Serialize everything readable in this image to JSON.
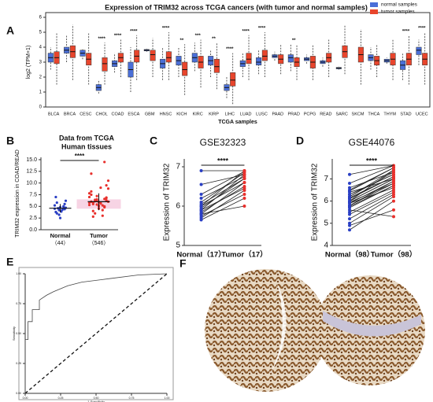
{
  "chart_data": [
    {
      "type": "box",
      "panel_label": "A",
      "title": "Expression of TRIM32 across TCGA cancers (with tumor and normal samples)",
      "ylabel": "log2 (TPM+1)",
      "xlabel": "TCGA samples",
      "ylim": [
        0,
        6
      ],
      "yticks": [
        0,
        1,
        2,
        3,
        4,
        5,
        6
      ],
      "legend": "upper right",
      "categories": [
        "BLCA",
        "BRCA",
        "CESC",
        "CHOL",
        "COAD",
        "ESCA",
        "GBM",
        "HNSC",
        "KICH",
        "KIRC",
        "KIRP",
        "LIHC",
        "LUAD",
        "LUSC",
        "PAAD",
        "PRAD",
        "PCPG",
        "READ",
        "SARC",
        "SKCM",
        "THCA",
        "THYM",
        "STAD",
        "UCEC"
      ],
      "significance": [
        null,
        null,
        null,
        "****",
        "****",
        "****",
        null,
        "****",
        "**",
        "***",
        "**",
        "****",
        "****",
        "****",
        null,
        "**",
        null,
        null,
        null,
        null,
        null,
        null,
        "****",
        "****"
      ],
      "series": [
        {
          "name": "normal samples",
          "color": "#4a6fd8",
          "median": [
            3.3,
            3.8,
            3.6,
            1.3,
            2.9,
            2.5,
            3.8,
            2.9,
            3.1,
            3.3,
            3.1,
            1.3,
            2.9,
            3.0,
            3.4,
            3.3,
            3.2,
            3.0,
            2.6,
            null,
            3.3,
            3.1,
            2.8,
            3.8
          ],
          "q1": [
            3.0,
            3.6,
            3.4,
            1.1,
            2.7,
            2.0,
            3.75,
            2.6,
            2.8,
            3.0,
            2.8,
            1.1,
            2.7,
            2.8,
            3.3,
            3.0,
            3.1,
            2.9,
            2.55,
            null,
            3.1,
            3.0,
            2.5,
            3.5
          ],
          "q3": [
            3.6,
            4.0,
            3.8,
            1.5,
            3.1,
            3.0,
            3.85,
            3.2,
            3.4,
            3.6,
            3.4,
            1.5,
            3.1,
            3.3,
            3.5,
            3.5,
            3.3,
            3.1,
            2.65,
            null,
            3.5,
            3.2,
            3.1,
            4.0
          ],
          "low": [
            2.5,
            3.0,
            3.2,
            0.9,
            2.3,
            1.0,
            3.7,
            1.8,
            2.0,
            2.4,
            2.0,
            0.6,
            2.0,
            2.2,
            3.1,
            2.4,
            2.9,
            2.7,
            2.5,
            null,
            2.5,
            2.9,
            1.8,
            2.8
          ],
          "high": [
            4.0,
            4.8,
            3.9,
            1.8,
            3.6,
            4.0,
            3.9,
            4.0,
            4.0,
            4.3,
            3.8,
            2.0,
            3.6,
            3.8,
            3.7,
            4.2,
            3.5,
            3.3,
            2.7,
            null,
            4.0,
            3.3,
            3.6,
            4.5
          ]
        },
        {
          "name": "tumor samples",
          "color": "#e8452c",
          "median": [
            3.3,
            3.7,
            3.2,
            2.9,
            3.3,
            3.4,
            3.5,
            3.3,
            2.5,
            3.0,
            2.7,
            1.8,
            3.2,
            3.4,
            3.2,
            3.0,
            3.0,
            3.3,
            3.7,
            3.5,
            3.1,
            3.2,
            3.2,
            3.2
          ],
          "q1": [
            2.9,
            3.3,
            2.8,
            2.4,
            3.0,
            3.0,
            3.1,
            3.0,
            2.1,
            2.6,
            2.3,
            1.4,
            2.9,
            3.1,
            2.9,
            2.7,
            2.6,
            3.0,
            3.3,
            3.0,
            2.8,
            2.8,
            2.8,
            2.8
          ],
          "q3": [
            3.7,
            4.1,
            3.6,
            3.3,
            3.6,
            3.8,
            3.8,
            3.7,
            3.0,
            3.4,
            3.2,
            2.3,
            3.6,
            3.8,
            3.5,
            3.3,
            3.4,
            3.6,
            4.1,
            4.0,
            3.4,
            3.6,
            3.6,
            3.6
          ],
          "low": [
            1.5,
            1.8,
            1.5,
            1.5,
            2.0,
            1.8,
            2.0,
            1.8,
            0.8,
            1.3,
            1.2,
            0.2,
            1.8,
            2.0,
            2.2,
            1.8,
            1.8,
            2.0,
            2.2,
            1.5,
            2.0,
            1.8,
            1.5,
            1.5
          ],
          "high": [
            5.0,
            5.5,
            5.0,
            4.3,
            4.5,
            4.8,
            4.6,
            5.0,
            4.2,
            4.5,
            4.3,
            3.6,
            4.8,
            5.0,
            4.2,
            4.2,
            4.2,
            4.5,
            5.5,
            5.2,
            4.2,
            4.5,
            4.8,
            5.0
          ]
        }
      ]
    },
    {
      "type": "dot",
      "panel_label": "B",
      "title": "Data from TCGA",
      "subtitle": "Human tissues",
      "ylabel": "TRIM32 expression in COAD/READ",
      "ylim": [
        0,
        15.5
      ],
      "yticks": [
        {
          "value": 0,
          "label": "0.0"
        },
        {
          "value": 2.5,
          "label": "2.5"
        },
        {
          "value": 5,
          "label": "5.0"
        },
        {
          "value": 7.5,
          "label": "7.5"
        },
        {
          "value": 10,
          "label": "10.0"
        },
        {
          "value": 12.5,
          "label": "12.5"
        },
        {
          "value": 15,
          "label": "15.0"
        }
      ],
      "categories": [
        "Normal",
        "Tumor"
      ],
      "counts": [
        "（44）",
        "（546）"
      ],
      "significance": "****",
      "groups": [
        {
          "color": "#2a3fc4",
          "values": [
            4.5,
            4.2,
            5.0,
            3.8,
            4.8,
            5.5,
            3.5,
            4.0,
            6.2,
            4.6,
            4.3,
            5.2,
            3.2,
            4.9,
            7.0,
            2.5,
            4.4,
            5.8,
            3.9,
            4.7
          ],
          "mean": 4.6,
          "sd": 0.9
        },
        {
          "color": "#e8302c",
          "values": [
            5.8,
            6.2,
            5.0,
            7.5,
            4.5,
            6.8,
            5.5,
            9.0,
            6.0,
            3.5,
            5.2,
            7.0,
            6.5,
            4.8,
            8.2,
            5.9,
            6.3,
            2.8,
            5.6,
            10.5,
            6.1,
            4.2,
            7.8,
            5.4,
            6.6,
            12.0,
            5.1,
            6.9,
            4.0,
            5.7,
            8.8,
            6.4,
            3.0,
            5.3,
            7.2,
            14.5,
            6.0,
            4.6,
            9.5,
            5.8
          ],
          "mean": 6.0,
          "sd": 1.8
        }
      ]
    },
    {
      "type": "paired",
      "panel_label": "C",
      "title": "GSE32323",
      "ylabel": "Expression of TRIM32",
      "ylim": [
        5,
        7.2
      ],
      "yticks": [
        5,
        6,
        7
      ],
      "categories": [
        "Normal（17）",
        "Tumor（17）"
      ],
      "colors": [
        "#2a3fc4",
        "#e8302c"
      ],
      "significance": "****",
      "before": [
        5.7,
        5.8,
        5.9,
        6.0,
        5.65,
        6.1,
        5.85,
        5.95,
        6.9,
        6.2,
        5.75,
        6.0,
        6.3,
        5.9,
        6.05,
        5.8,
        6.55
      ],
      "after": [
        6.4,
        6.6,
        6.8,
        6.9,
        6.2,
        6.85,
        6.5,
        6.7,
        6.9,
        6.75,
        6.3,
        6.6,
        6.88,
        6.45,
        6.7,
        6.0,
        6.8
      ]
    },
    {
      "type": "paired",
      "panel_label": "D",
      "title": "GSE44076",
      "ylabel": "Expression of TRIM32",
      "ylim": [
        4,
        7.9
      ],
      "yticks": [
        4,
        5,
        6,
        7
      ],
      "categories": [
        "Normal（98）",
        "Tumor（98）"
      ],
      "colors": [
        "#2a3fc4",
        "#e8302c"
      ],
      "significance": "****",
      "before": [
        6.0,
        5.8,
        6.2,
        5.5,
        6.5,
        7.2,
        5.9,
        6.1,
        4.7,
        5.7,
        6.3,
        6.0,
        5.2,
        6.4,
        5.6,
        6.6,
        5.9,
        6.1,
        5.0,
        6.2,
        5.8,
        6.0,
        6.8,
        5.4,
        6.3,
        5.95,
        6.15,
        4.9,
        5.75,
        6.45
      ],
      "after": [
        7.0,
        6.8,
        7.3,
        6.5,
        7.5,
        7.6,
        6.9,
        7.1,
        6.0,
        6.7,
        7.2,
        7.4,
        6.3,
        7.0,
        5.3,
        7.3,
        6.6,
        7.1,
        6.2,
        7.4,
        6.9,
        7.0,
        7.6,
        6.4,
        7.2,
        6.8,
        7.1,
        5.6,
        6.7,
        7.5
      ]
    },
    {
      "type": "roc",
      "panel_label": "E",
      "xlabel": "1-Specificity",
      "ylabel": "Sensitivity",
      "xlim": [
        0,
        1
      ],
      "ylim": [
        0,
        1
      ],
      "xticks": [
        {
          "value": 0,
          "label": "0.00"
        },
        {
          "value": 0.25,
          "label": "0.25"
        },
        {
          "value": 0.5,
          "label": "0.50"
        },
        {
          "value": 0.75,
          "label": "0.75"
        },
        {
          "value": 1,
          "label": "1.00"
        }
      ],
      "yticks": [
        {
          "value": 0,
          "label": "0.00"
        },
        {
          "value": 0.25,
          "label": "0.25"
        },
        {
          "value": 0.5,
          "label": "0.50"
        },
        {
          "value": 0.75,
          "label": "0.75"
        },
        {
          "value": 1,
          "label": "1.00"
        }
      ],
      "x": [
        0,
        0,
        0.02,
        0.02,
        0.05,
        0.05,
        0.1,
        0.1,
        0.15,
        0.2,
        0.3,
        0.4,
        0.6,
        0.8,
        1
      ],
      "y": [
        0,
        0.45,
        0.45,
        0.6,
        0.6,
        0.7,
        0.7,
        0.78,
        0.82,
        0.85,
        0.9,
        0.93,
        0.96,
        0.99,
        1
      ]
    }
  ],
  "panel_f": {
    "panel_label": "F"
  }
}
